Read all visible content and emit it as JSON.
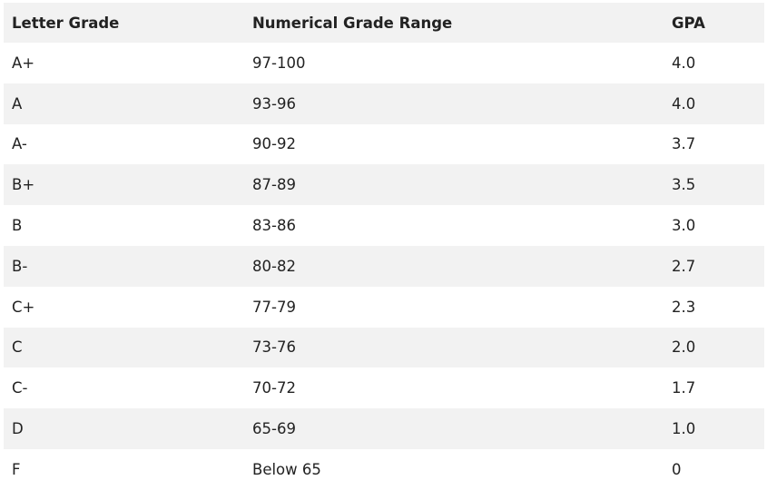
{
  "table": {
    "headers": [
      "Letter Grade",
      "Numerical Grade Range",
      "GPA"
    ],
    "rows": [
      [
        "A+",
        "97-100",
        "4.0"
      ],
      [
        "A",
        "93-96",
        "4.0"
      ],
      [
        "A-",
        "90-92",
        "3.7"
      ],
      [
        "B+",
        "87-89",
        "3.5"
      ],
      [
        "B",
        "83-86",
        "3.0"
      ],
      [
        "B-",
        "80-82",
        "2.7"
      ],
      [
        "C+",
        "77-79",
        "2.3"
      ],
      [
        "C",
        "73-76",
        "2.0"
      ],
      [
        "C-",
        "70-72",
        "1.7"
      ],
      [
        "D",
        "65-69",
        "1.0"
      ],
      [
        "F",
        "Below 65",
        "0"
      ]
    ],
    "colors": {
      "stripe": "#f2f2f2",
      "text": "#222222"
    }
  }
}
